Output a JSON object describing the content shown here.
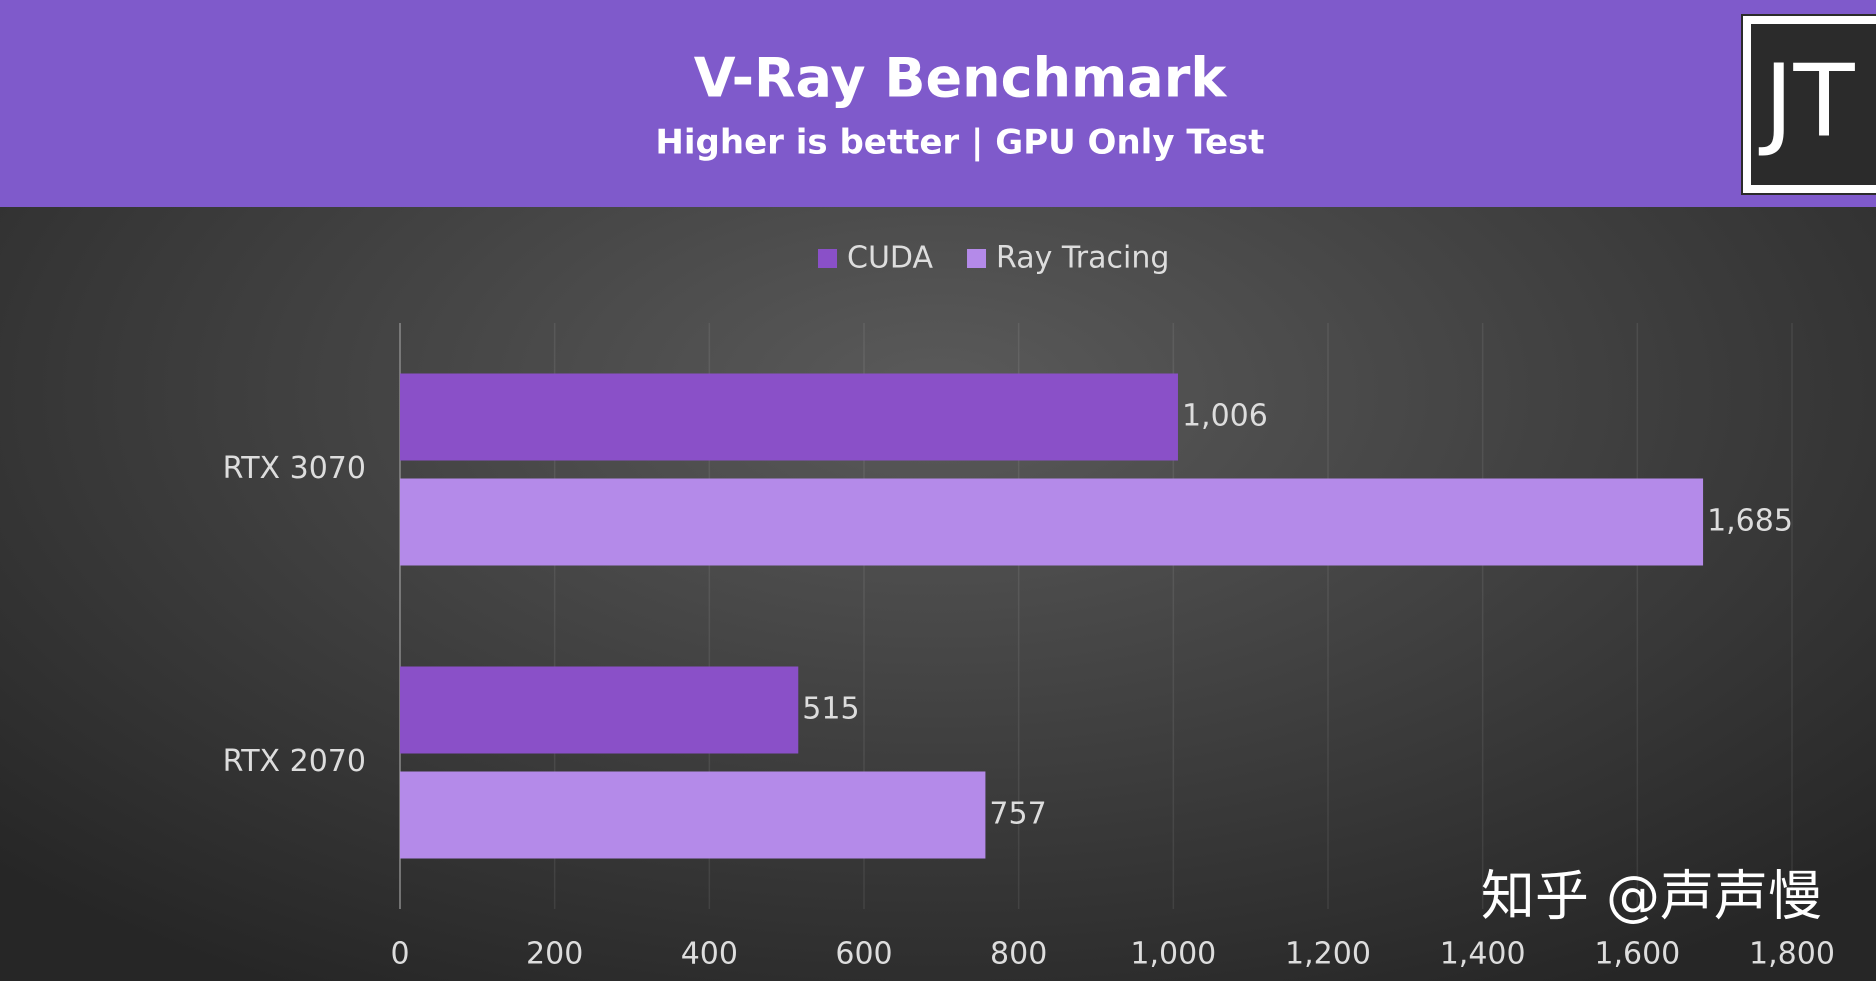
{
  "chart_data": {
    "type": "bar",
    "orientation": "horizontal",
    "title": "V-Ray Benchmark",
    "subtitle": "Higher is better | GPU Only Test",
    "logo": "JT",
    "watermark": "知乎 @声声慢",
    "categories": [
      "RTX 3070",
      "RTX 2070"
    ],
    "series": [
      {
        "name": "CUDA",
        "color": "#8a50c8",
        "values": [
          1006,
          515
        ],
        "value_labels": [
          "1,006",
          "515"
        ]
      },
      {
        "name": "Ray Tracing",
        "color": "#b48ae9",
        "values": [
          1685,
          757
        ],
        "value_labels": [
          "1,685",
          "757"
        ]
      }
    ],
    "xlim": [
      0,
      1800
    ],
    "xticks": [
      0,
      200,
      400,
      600,
      800,
      {
        "value": 1000,
        "label": "1,000"
      },
      {
        "value": 1200,
        "label": "1,200"
      },
      {
        "value": 1400,
        "label": "1,400"
      },
      {
        "value": 1600,
        "label": "1,600"
      },
      {
        "value": 1800,
        "label": "1,800"
      }
    ],
    "grid": true,
    "legend": "top"
  }
}
